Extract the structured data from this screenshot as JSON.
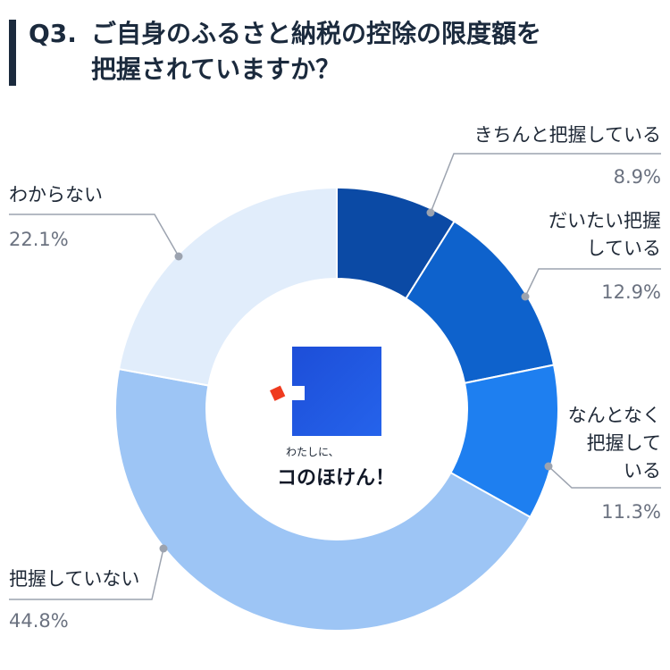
{
  "header": {
    "question_no": "Q3.",
    "title_line1": "ご自身のふるさと納税の控除の限度額を",
    "title_line2": "把握されていますか？"
  },
  "logo": {
    "small": "わたしに、",
    "big": "コのほけん！"
  },
  "chart_data": {
    "type": "pie",
    "title": "ご自身のふるさと納税の控除の限度額を把握されていますか？",
    "categories": [
      "きちんと把握している",
      "だいたい把握している",
      "なんとなく把握している",
      "把握していない",
      "わからない"
    ],
    "values": [
      8.9,
      12.9,
      11.3,
      44.8,
      22.1
    ],
    "value_labels": [
      "8.9%",
      "12.9%",
      "11.3%",
      "44.8%",
      "22.1%"
    ],
    "label_lines": [
      [
        "きちんと把握している"
      ],
      [
        "だいたい把握",
        "している"
      ],
      [
        "なんとなく",
        "把握して",
        "いる"
      ],
      [
        "把握していない"
      ],
      [
        "わからない"
      ]
    ],
    "colors": [
      "#0b4aa5",
      "#0e62cc",
      "#1e7ff0",
      "#9dc5f5",
      "#e1edfb"
    ],
    "donut": true
  }
}
